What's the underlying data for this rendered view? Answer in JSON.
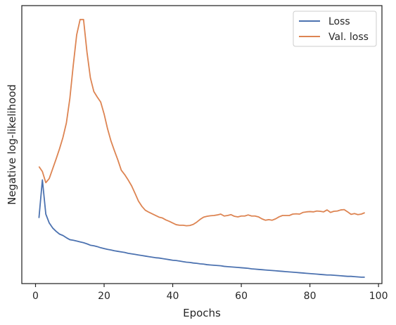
{
  "chart_data": {
    "type": "line",
    "xlabel": "Epochs",
    "ylabel": "Negative log-likelihood",
    "xlim": [
      -4,
      101
    ],
    "ylim": [
      0,
      100
    ],
    "y_ticks_shown": false,
    "x_ticks": [
      0,
      20,
      40,
      60,
      80,
      100
    ],
    "grid": false,
    "legend_position": "top-right",
    "series": [
      {
        "name": "Loss",
        "color": "#4c72b0",
        "x": [
          1,
          2,
          3,
          4,
          5,
          6,
          7,
          8,
          9,
          10,
          11,
          12,
          13,
          14,
          15,
          16,
          17,
          18,
          19,
          20,
          21,
          22,
          23,
          24,
          25,
          26,
          27,
          28,
          29,
          30,
          31,
          32,
          33,
          34,
          35,
          36,
          37,
          38,
          39,
          40,
          41,
          42,
          43,
          44,
          45,
          46,
          47,
          48,
          49,
          50,
          51,
          52,
          53,
          54,
          55,
          56,
          57,
          58,
          59,
          60,
          61,
          62,
          63,
          64,
          65,
          66,
          67,
          68,
          69,
          70,
          71,
          72,
          73,
          74,
          75,
          76,
          77,
          78,
          79,
          80,
          81,
          82,
          83,
          84,
          85,
          86,
          87,
          88,
          89,
          90,
          91,
          92,
          93,
          94,
          95,
          96
        ],
        "values": [
          23.6,
          37.3,
          25.0,
          21.8,
          20.0,
          18.8,
          17.8,
          17.3,
          16.5,
          15.8,
          15.6,
          15.3,
          15.0,
          14.7,
          14.3,
          13.8,
          13.6,
          13.3,
          12.9,
          12.6,
          12.3,
          12.1,
          11.8,
          11.6,
          11.4,
          11.2,
          10.9,
          10.7,
          10.5,
          10.3,
          10.1,
          9.9,
          9.7,
          9.5,
          9.3,
          9.2,
          9.0,
          8.8,
          8.6,
          8.4,
          8.3,
          8.1,
          7.9,
          7.7,
          7.6,
          7.4,
          7.3,
          7.1,
          7.0,
          6.8,
          6.7,
          6.6,
          6.5,
          6.4,
          6.2,
          6.1,
          6.0,
          5.9,
          5.8,
          5.7,
          5.6,
          5.5,
          5.3,
          5.2,
          5.1,
          5.0,
          4.9,
          4.8,
          4.7,
          4.6,
          4.5,
          4.4,
          4.3,
          4.2,
          4.1,
          4.0,
          3.9,
          3.8,
          3.7,
          3.6,
          3.5,
          3.4,
          3.3,
          3.2,
          3.1,
          3.1,
          3.0,
          2.9,
          2.8,
          2.7,
          2.6,
          2.6,
          2.5,
          2.4,
          2.3,
          2.3
        ]
      },
      {
        "name": "Val. loss",
        "color": "#dd8452",
        "x": [
          1,
          2,
          3,
          4,
          5,
          6,
          7,
          8,
          9,
          10,
          11,
          12,
          13,
          14,
          15,
          16,
          17,
          18,
          19,
          20,
          21,
          22,
          23,
          24,
          25,
          26,
          27,
          28,
          29,
          30,
          31,
          32,
          33,
          34,
          35,
          36,
          37,
          38,
          39,
          40,
          41,
          42,
          43,
          44,
          45,
          46,
          47,
          48,
          49,
          50,
          51,
          52,
          53,
          54,
          55,
          56,
          57,
          58,
          59,
          60,
          61,
          62,
          63,
          64,
          65,
          66,
          67,
          68,
          69,
          70,
          71,
          72,
          73,
          74,
          75,
          76,
          77,
          78,
          79,
          80,
          81,
          82,
          83,
          84,
          85,
          86,
          87,
          88,
          89,
          90,
          91,
          92,
          93,
          94,
          95,
          96
        ],
        "values": [
          42.1,
          40.3,
          36.3,
          37.8,
          41.3,
          44.8,
          48.5,
          52.6,
          57.8,
          66.5,
          78.5,
          89.5,
          95.0,
          95.0,
          83.3,
          74.0,
          69.1,
          67.1,
          65.3,
          61.0,
          55.7,
          51.3,
          47.8,
          44.5,
          40.8,
          39.2,
          37.3,
          35.2,
          32.5,
          29.7,
          27.8,
          26.4,
          25.7,
          25.1,
          24.5,
          23.9,
          23.6,
          22.9,
          22.4,
          21.8,
          21.2,
          21.0,
          21.0,
          20.8,
          20.9,
          21.3,
          22.1,
          23.1,
          23.9,
          24.2,
          24.4,
          24.5,
          24.7,
          25.0,
          24.3,
          24.5,
          24.8,
          24.2,
          24.0,
          24.3,
          24.3,
          24.7,
          24.3,
          24.3,
          24.0,
          23.3,
          22.8,
          23.0,
          22.8,
          23.3,
          24.0,
          24.5,
          24.5,
          24.5,
          25.0,
          25.1,
          25.0,
          25.6,
          25.8,
          25.9,
          25.8,
          26.1,
          26.0,
          25.8,
          26.5,
          25.6,
          26.0,
          26.1,
          26.5,
          26.6,
          25.8,
          24.9,
          25.2,
          24.8,
          25.0,
          25.5
        ]
      }
    ]
  }
}
